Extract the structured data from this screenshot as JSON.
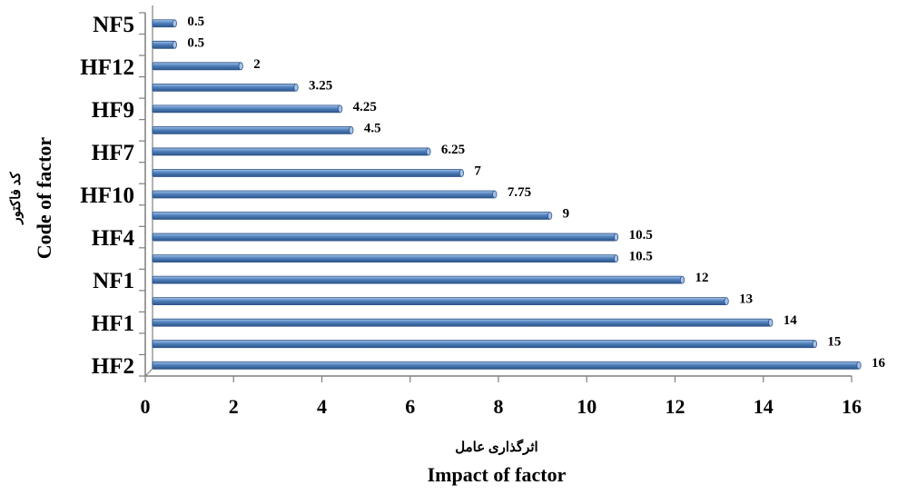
{
  "chart_data": {
    "type": "bar",
    "orientation": "horizontal",
    "categories": [
      "HF2",
      "",
      "HF1",
      "",
      "NF1",
      "",
      "HF4",
      "",
      "HF10",
      "",
      "HF7",
      "",
      "HF9",
      "",
      "HF12",
      "",
      "NF5"
    ],
    "values": [
      16,
      15,
      14,
      13,
      12,
      10.5,
      10.5,
      9,
      7.75,
      7,
      6.25,
      4.5,
      4.25,
      3.25,
      2,
      0.5,
      0.5
    ],
    "data_labels": [
      "16",
      "15",
      "14",
      "13",
      "12",
      "10.5",
      "10.5",
      "9",
      "7.75",
      "7",
      "6.25",
      "4.5",
      "4.25",
      "3.25",
      "2",
      "0.5",
      "0.5"
    ],
    "xlim": [
      0,
      16
    ],
    "x_ticks": [
      "0",
      "2",
      "4",
      "6",
      "8",
      "10",
      "12",
      "14",
      "16"
    ],
    "xlabel": "Impact of factor",
    "xlabel_alt": "اثرگذاری عامل",
    "ylabel": "Code of factor",
    "ylabel_alt": "کد فاکتور",
    "grid": false,
    "legend": "none",
    "bar_color": "#4f81bd",
    "bar_highlight": "#a7c3e6",
    "bar_shadow": "#2e5489"
  }
}
